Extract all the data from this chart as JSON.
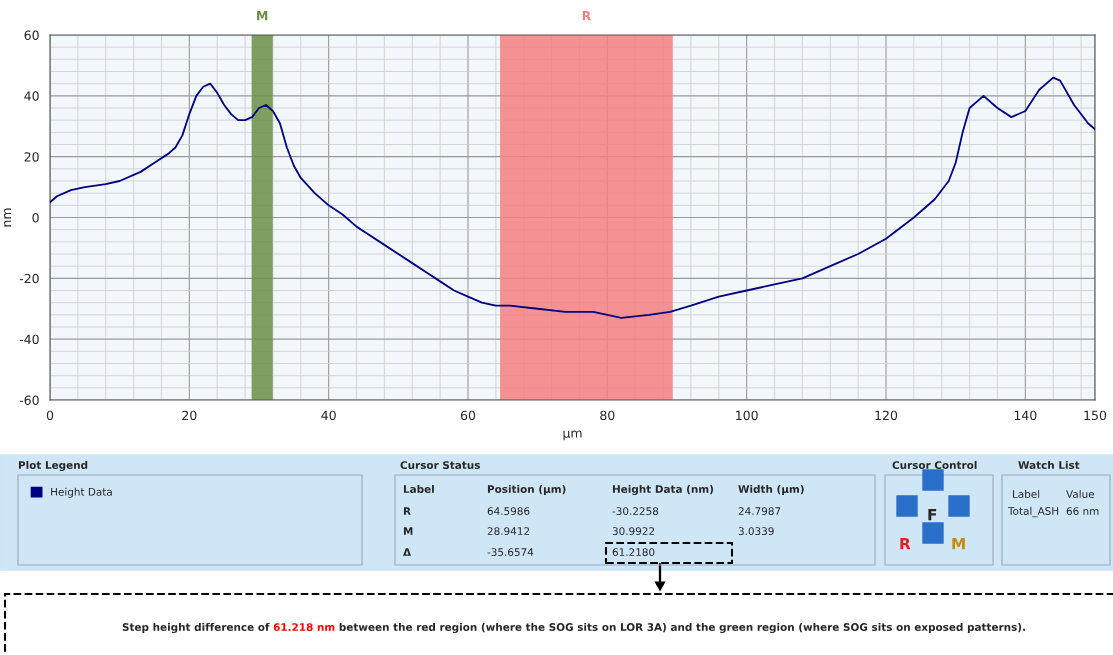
{
  "chart_data": {
    "type": "line",
    "xlabel": "µm",
    "ylabel": "nm",
    "xlim": [
      0,
      150
    ],
    "ylim": [
      -60,
      60
    ],
    "xticks": [
      0,
      20,
      40,
      60,
      80,
      100,
      120,
      140,
      150
    ],
    "yticks": [
      -60,
      -40,
      -20,
      0,
      20,
      40,
      60
    ],
    "grid": true,
    "legend": "bottom left",
    "marker": "none",
    "line_style": "solid",
    "series": [
      {
        "name": "Height Data",
        "color": "#000080",
        "x": [
          0,
          1,
          3,
          5,
          8,
          10,
          13,
          15,
          17,
          18,
          19,
          20,
          21,
          22,
          23,
          24,
          25,
          26,
          27,
          28,
          29,
          30,
          31,
          32,
          33,
          34,
          35,
          36,
          38,
          40,
          42,
          44,
          46,
          48,
          50,
          52,
          54,
          56,
          58,
          60,
          62,
          64,
          66,
          70,
          74,
          78,
          82,
          86,
          89,
          92,
          96,
          100,
          104,
          108,
          112,
          116,
          120,
          124,
          127,
          129,
          130,
          131,
          132,
          134,
          136,
          138,
          140,
          142,
          144,
          145,
          147,
          149,
          150
        ],
        "values": [
          5,
          7,
          9,
          10,
          11,
          12,
          15,
          18,
          21,
          23,
          27,
          34,
          40,
          43,
          44,
          41,
          37,
          34,
          32,
          32,
          33,
          36,
          37,
          35,
          31,
          23,
          17,
          13,
          8,
          4,
          1,
          -3,
          -6,
          -9,
          -12,
          -15,
          -18,
          -21,
          -24,
          -26,
          -28,
          -29,
          -29,
          -30,
          -31,
          -31,
          -33,
          -32,
          -31,
          -29,
          -26,
          -24,
          -22,
          -20,
          -16,
          -12,
          -7,
          0,
          6,
          12,
          18,
          28,
          36,
          40,
          36,
          33,
          35,
          42,
          46,
          45,
          37,
          31,
          29
        ]
      }
    ],
    "bands": [
      {
        "axis": "x",
        "from": 28.9412,
        "to": 31.9751,
        "label": "M",
        "color": "#6b8f47"
      },
      {
        "axis": "x",
        "from": 64.5986,
        "to": 89.3973,
        "label": "R",
        "color": "#f47f7f"
      }
    ],
    "annotations": [
      "Plot Legend",
      "Cursor Status",
      "Label",
      "Position (µm)",
      "Height Data (nm)",
      "Width (µm)",
      "R",
      "64.5986",
      "-30.2258",
      "24.7987",
      "M",
      "28.9412",
      "30.9922",
      "3.0339",
      "Δ",
      "-35.6574",
      "61.2180",
      "Cursor Control",
      "F",
      "R",
      "M",
      "Watch List",
      "Label",
      "Value",
      "Total_ASH",
      "66 nm",
      "Step height difference of ",
      "61.218 nm",
      " between the red region (where the SOG sits on LOR 3A) and the green region (where SOG sits on exposed patterns)."
    ]
  }
}
